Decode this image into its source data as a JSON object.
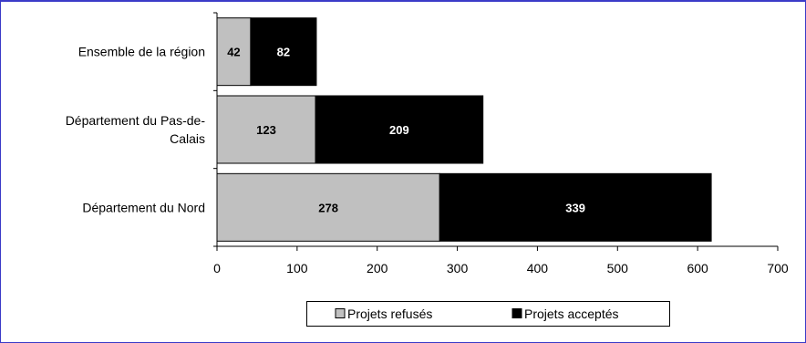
{
  "chart_data": {
    "type": "bar",
    "orientation": "horizontal",
    "stacked": true,
    "categories": [
      "Ensemble de la région",
      "Département du Pas-de-Calais",
      "Département du Nord"
    ],
    "category_label_lines": [
      [
        "Ensemble de la région"
      ],
      [
        "Département du Pas-de-",
        "Calais"
      ],
      [
        "Département du Nord"
      ]
    ],
    "series": [
      {
        "name": "Projets refusés",
        "values": [
          42,
          123,
          278
        ],
        "color": "#c0c0c0",
        "label_color": "#000000"
      },
      {
        "name": "Projets acceptés",
        "values": [
          82,
          209,
          339
        ],
        "color": "#000000",
        "label_color": "#ffffff"
      }
    ],
    "xlim": [
      0,
      700
    ],
    "x_ticks": [
      0,
      100,
      200,
      300,
      400,
      500,
      600,
      700
    ],
    "grid": false,
    "legend_position": "bottom"
  }
}
